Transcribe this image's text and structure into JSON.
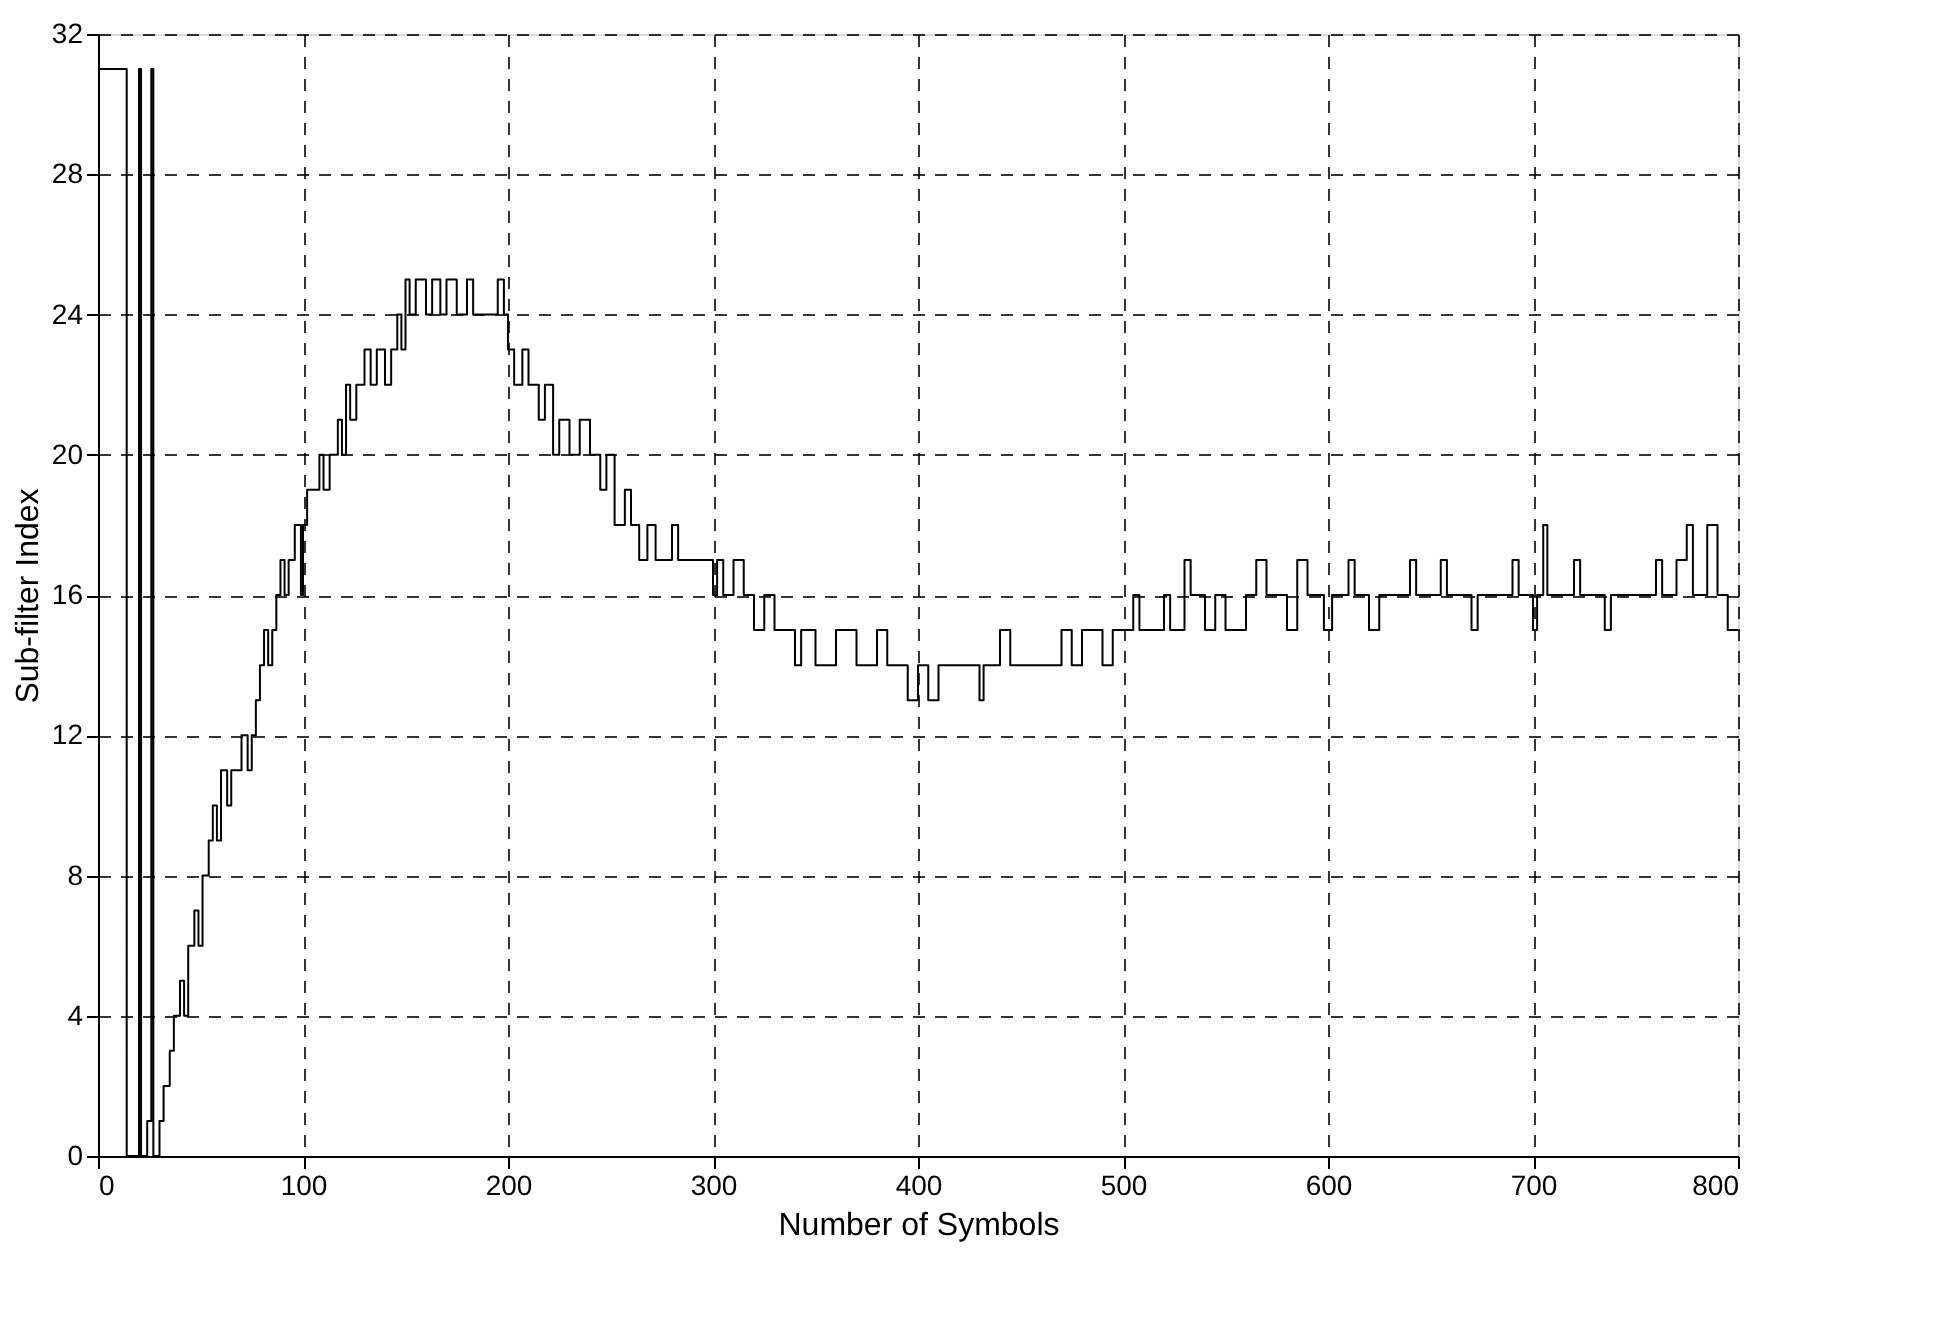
{
  "chart_data": {
    "type": "step",
    "xlabel": "Number of Symbols",
    "ylabel": "Sub-filter Index",
    "xlim": [
      0,
      800
    ],
    "ylim": [
      0,
      32
    ],
    "xticks": [
      0,
      100,
      200,
      300,
      400,
      500,
      600,
      700,
      800
    ],
    "yticks": [
      0,
      4,
      8,
      12,
      16,
      20,
      24,
      28,
      32
    ],
    "grid": true,
    "line_style": "solid",
    "marker": "none",
    "series": [
      {
        "color": "#000000",
        "x": [
          0,
          14,
          20,
          21,
          24,
          26,
          27,
          30,
          32,
          35,
          37,
          40,
          42,
          44,
          47,
          49,
          51,
          54,
          56,
          58,
          60,
          63,
          65,
          70,
          73,
          75,
          77,
          79,
          81,
          83,
          85,
          87,
          89,
          91,
          93,
          96,
          99,
          100,
          102,
          108,
          110,
          113,
          117,
          119,
          121,
          123,
          126,
          130,
          133,
          136,
          140,
          143,
          146,
          148,
          150,
          152,
          155,
          160,
          163,
          167,
          170,
          175,
          180,
          183,
          195,
          198,
          200,
          203,
          207,
          210,
          215,
          218,
          222,
          225,
          230,
          235,
          240,
          245,
          248,
          252,
          257,
          260,
          264,
          268,
          272,
          280,
          283,
          300,
          302,
          305,
          310,
          315,
          320,
          325,
          330,
          340,
          343,
          350,
          360,
          370,
          380,
          385,
          395,
          400,
          405,
          410,
          430,
          432,
          440,
          445,
          460,
          470,
          475,
          480,
          490,
          495,
          505,
          508,
          520,
          523,
          530,
          533,
          540,
          545,
          550,
          560,
          565,
          570,
          580,
          585,
          590,
          598,
          602,
          610,
          613,
          620,
          625,
          640,
          643,
          655,
          658,
          670,
          673,
          690,
          693,
          700,
          702,
          705,
          707,
          720,
          723,
          735,
          738,
          760,
          763,
          770,
          775,
          778,
          785,
          790,
          795,
          800
        ],
        "values": [
          31,
          0,
          31,
          0,
          1,
          31,
          0,
          1,
          2,
          3,
          4,
          5,
          4,
          6,
          7,
          6,
          8,
          9,
          10,
          9,
          11,
          10,
          11,
          12,
          11,
          12,
          13,
          14,
          15,
          14,
          15,
          16,
          17,
          16,
          17,
          18,
          16,
          18,
          19,
          20,
          19,
          20,
          21,
          20,
          22,
          21,
          22,
          23,
          22,
          23,
          22,
          23,
          24,
          23,
          25,
          24,
          25,
          24,
          25,
          24,
          25,
          24,
          25,
          24,
          25,
          24,
          23,
          22,
          23,
          22,
          21,
          22,
          20,
          21,
          20,
          21,
          20,
          19,
          20,
          18,
          19,
          18,
          17,
          18,
          17,
          18,
          17,
          16,
          17,
          16,
          17,
          16,
          15,
          16,
          15,
          14,
          15,
          14,
          15,
          14,
          15,
          14,
          13,
          14,
          13,
          14,
          13,
          14,
          15,
          14,
          14,
          15,
          14,
          15,
          14,
          15,
          16,
          15,
          16,
          15,
          17,
          16,
          15,
          16,
          15,
          16,
          17,
          16,
          15,
          17,
          16,
          15,
          16,
          17,
          16,
          15,
          16,
          17,
          16,
          17,
          16,
          15,
          16,
          17,
          16,
          15,
          16,
          18,
          16,
          17,
          16,
          15,
          16,
          17,
          16,
          17,
          18,
          16,
          18,
          16,
          15,
          15
        ]
      }
    ]
  }
}
